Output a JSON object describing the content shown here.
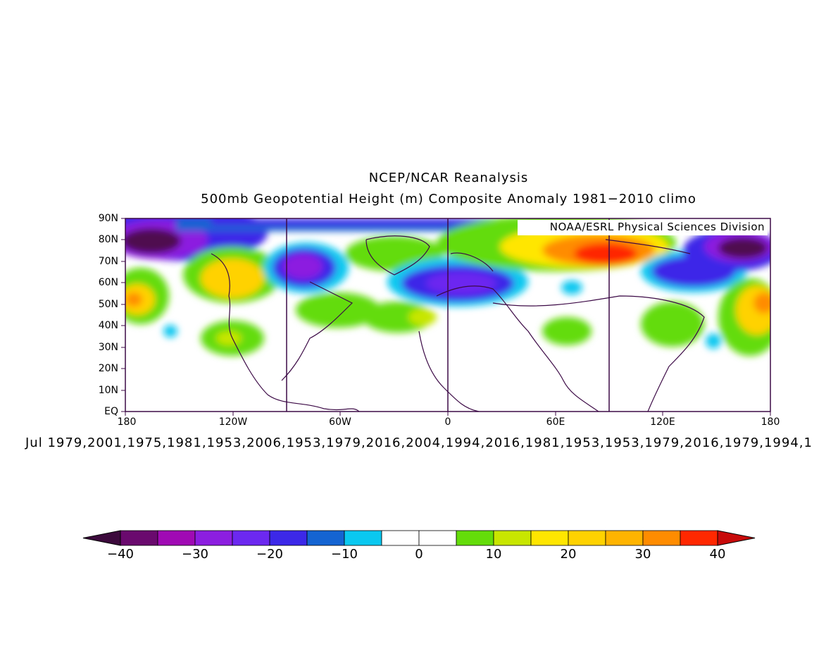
{
  "titles": {
    "line1": "NCEP/NCAR Reanalysis",
    "line2": "500mb Geopotential Height (m) Composite Anomaly 1981-2010 climo"
  },
  "credit": "NOAA/ESRL Physical Sciences Division",
  "y_axis_labels": [
    "90N",
    "80N",
    "70N",
    "60N",
    "50N",
    "40N",
    "30N",
    "20N",
    "10N",
    "EQ"
  ],
  "x_axis_labels": [
    "180",
    "120W",
    "60W",
    "0",
    "60E",
    "120E",
    "180"
  ],
  "dates_line": "Jul 1979,2001,1975,1981,1953,2006,1953,1979,2016,2004,1994,2016,1981,1953,1953,1979,2016,1979,1994,1",
  "colorbar": {
    "labels": [
      "-40",
      "-30",
      "-20",
      "-10",
      "0",
      "10",
      "20",
      "30",
      "40"
    ],
    "colors": [
      "#6a0a6e",
      "#a00ab4",
      "#8c1ee0",
      "#6c28f0",
      "#3c28e8",
      "#1464d2",
      "#0ac8f0",
      "#ffffff",
      "#ffffff",
      "#64dc0a",
      "#c8e600",
      "#ffe600",
      "#ffd200",
      "#ffb400",
      "#ff8c00",
      "#ff2800"
    ],
    "low_arrow_color": "#3c0a3c",
    "high_arrow_color": "#c80a0a"
  },
  "palette": {
    "frame": "#3c0a46",
    "coast": "#3c0a46"
  }
}
